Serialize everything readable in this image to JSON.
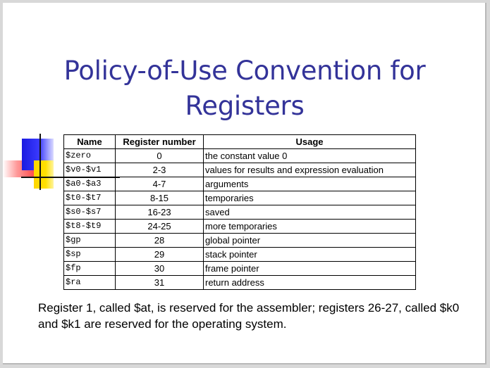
{
  "title_lines": [
    "Policy-of-Use Convention for",
    "Registers"
  ],
  "table": {
    "headers": [
      "Name",
      "Register number",
      "Usage"
    ],
    "rows": [
      [
        "$zero",
        "0",
        "the constant value 0"
      ],
      [
        "$v0-$v1",
        "2-3",
        "values for results and expression evaluation"
      ],
      [
        "$a0-$a3",
        "4-7",
        "arguments"
      ],
      [
        "$t0-$t7",
        "8-15",
        "temporaries"
      ],
      [
        "$s0-$s7",
        "16-23",
        "saved"
      ],
      [
        "$t8-$t9",
        "24-25",
        "more temporaries"
      ],
      [
        "$gp",
        "28",
        "global pointer"
      ],
      [
        "$sp",
        "29",
        "stack pointer"
      ],
      [
        "$fp",
        "30",
        "frame pointer"
      ],
      [
        "$ra",
        "31",
        "return address"
      ]
    ]
  },
  "note": "Register 1, called $at, is reserved for the assembler; registers 26-27, called $k0 and $k1 are reserved for the operating system.",
  "colors": {
    "title": "#333399"
  }
}
